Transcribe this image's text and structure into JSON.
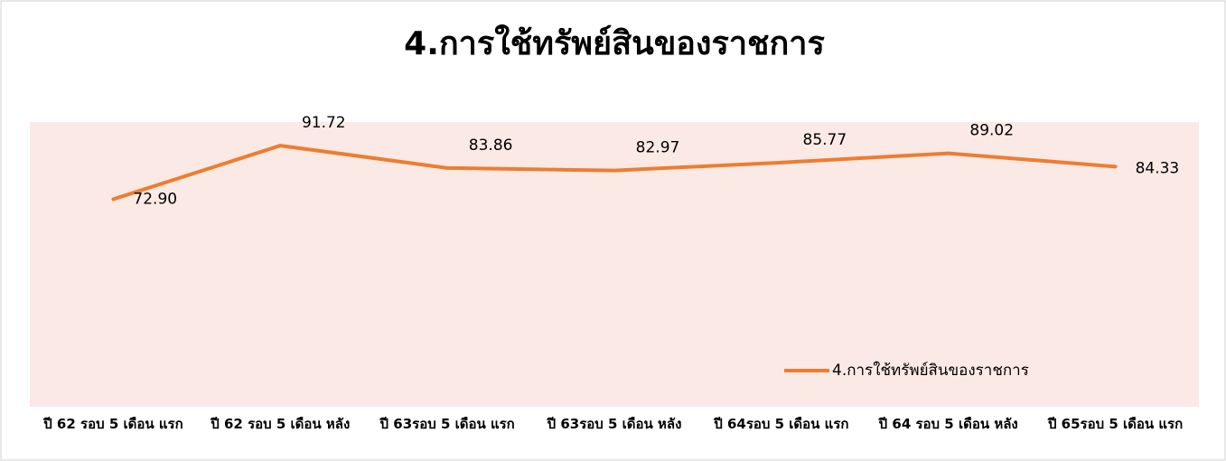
{
  "chart_data": {
    "type": "line",
    "title": "4.การใช้ทรัพย์สินของราชการ",
    "categories": [
      "ปี 62 รอบ 5 เดือน แรก",
      "ปี 62 รอบ 5 เดือน หลัง",
      "ปี 63รอบ 5 เดือน แรก",
      "ปี 63รอบ 5 เดือน หลัง",
      "ปี 64รอบ 5 เดือน แรก",
      "ปี 64 รอบ 5 เดือน หลัง",
      "ปี 65รอบ 5 เดือน แรก"
    ],
    "series": [
      {
        "name": "4.การใช้ทรัพย์สินของราชการ",
        "color": "#ed7d31",
        "values": [
          72.9,
          91.72,
          83.86,
          82.97,
          85.77,
          89.02,
          84.33
        ],
        "value_labels": [
          "72.90",
          "91.72",
          "83.86",
          "82.97",
          "85.77",
          "89.02",
          "84.33"
        ]
      }
    ],
    "ylim": [
      0,
      100
    ],
    "legend": "bottom-right"
  }
}
